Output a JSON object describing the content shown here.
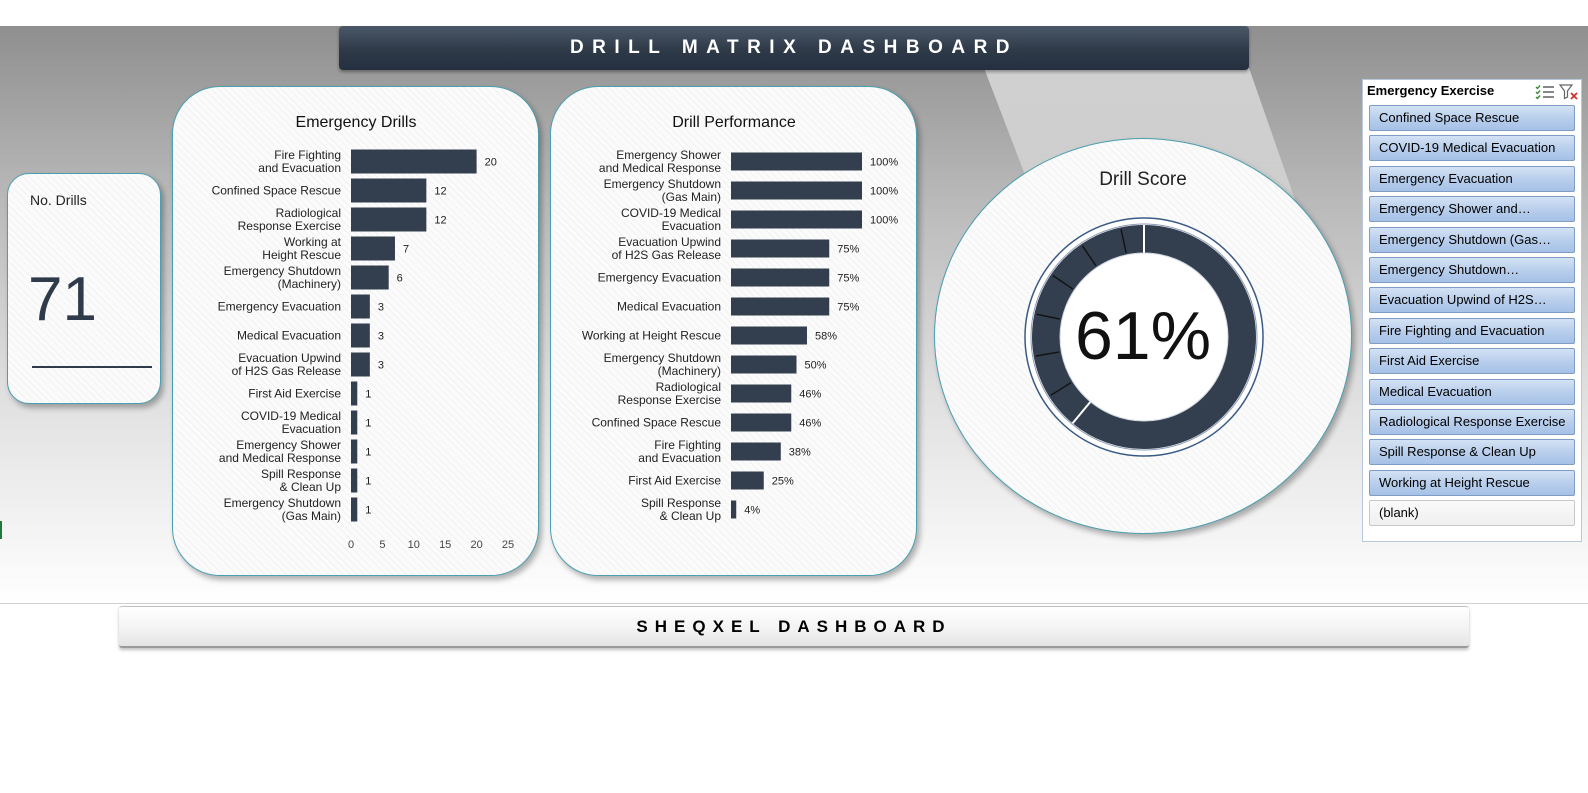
{
  "header": {
    "title": "DRILL MATRIX DASHBOARD"
  },
  "kpi": {
    "label": "No. Drills",
    "value": "71"
  },
  "chart_data": [
    {
      "type": "bar",
      "orientation": "horizontal",
      "title": "Emergency Drills",
      "categories": [
        "Fire Fighting and Evacuation",
        "Confined Space Rescue",
        "Radiological Response Exercise",
        "Working at Height Rescue",
        "Emergency Shutdown (Machinery)",
        "Emergency Evacuation",
        "Medical Evacuation",
        "Evacuation Upwind of H2S Gas Release",
        "First Aid Exercise",
        "COVID-19 Medical Evacuation",
        "Emergency Shower and Medical Response",
        "Spill Response & Clean Up",
        "Emergency Shutdown (Gas Main)"
      ],
      "values": [
        20,
        12,
        12,
        7,
        6,
        3,
        3,
        3,
        1,
        1,
        1,
        1,
        1
      ],
      "xlim": [
        0,
        25
      ],
      "xticks": [
        0,
        5,
        10,
        15,
        20,
        25
      ],
      "grid": false,
      "bar_color": "#333f4f"
    },
    {
      "type": "bar",
      "orientation": "horizontal",
      "title": "Drill Performance",
      "categories": [
        "Emergency Shower and Medical Response",
        "Emergency Shutdown (Gas Main)",
        "COVID-19 Medical Evacuation",
        "Evacuation Upwind of H2S Gas Release",
        "Emergency Evacuation",
        "Medical Evacuation",
        "Working at Height Rescue",
        "Emergency Shutdown (Machinery)",
        "Radiological Response Exercise",
        "Confined Space Rescue",
        "Fire Fighting and Evacuation",
        "First Aid Exercise",
        "Spill Response & Clean Up"
      ],
      "values": [
        100,
        100,
        100,
        75,
        75,
        75,
        58,
        50,
        46,
        46,
        38,
        25,
        4
      ],
      "value_suffix": "%",
      "xlim": [
        0,
        100
      ],
      "grid": false,
      "bar_color": "#333f4f"
    }
  ],
  "score": {
    "title": "Drill Score",
    "value_label": "61%",
    "percent": 61,
    "gauge_color": "#333f4f"
  },
  "slicer": {
    "title": "Emergency Exercise",
    "items": [
      "Confined Space Rescue",
      "COVID-19 Medical Evacuation",
      "Emergency Evacuation",
      "Emergency Shower and…",
      "Emergency Shutdown (Gas…",
      "Emergency Shutdown…",
      "Evacuation Upwind of H2S…",
      "Fire Fighting and Evacuation",
      "First Aid Exercise",
      "Medical Evacuation",
      "Radiological Response Exercise",
      "Spill Response & Clean Up",
      "Working at Height Rescue",
      "(blank)"
    ],
    "multi_select_icon": "multi-select-icon",
    "clear_filter_icon": "clear-filter-icon"
  },
  "footer": {
    "title": "SHEQXEL DASHBOARD"
  }
}
